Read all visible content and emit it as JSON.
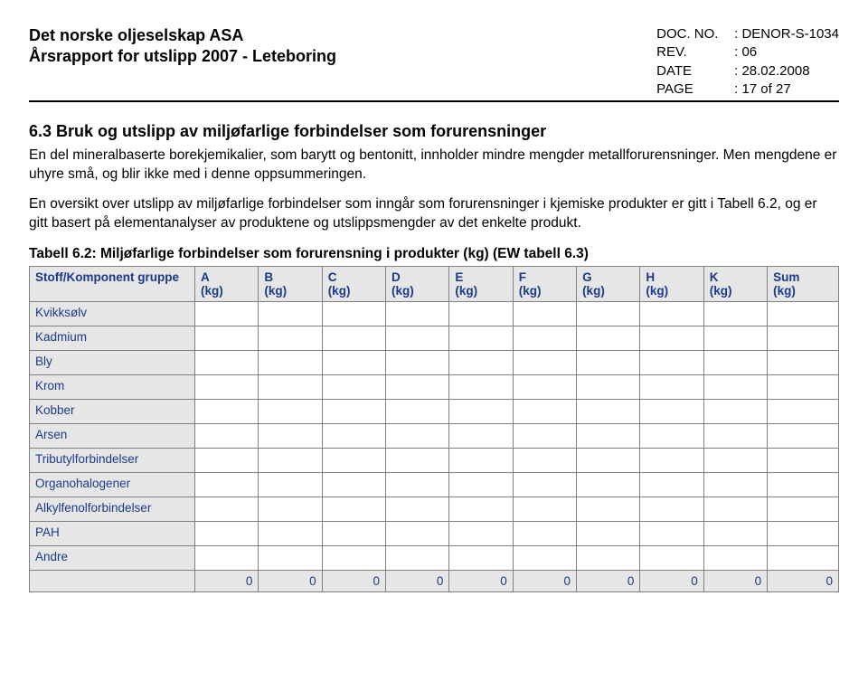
{
  "header": {
    "company": "Det norske oljeselskap ASA",
    "report": "Årsrapport for utslipp 2007 - Leteboring",
    "doc_label": "DOC. NO.",
    "doc_value": ": DENOR-S-1034",
    "rev_label": "REV.",
    "rev_value": ": 06",
    "date_label": "DATE",
    "date_value": ": 28.02.2008",
    "page_label": "PAGE",
    "page_value": ": 17 of 27"
  },
  "section": {
    "heading": "6.3  Bruk og utslipp av miljøfarlige forbindelser som forurensninger",
    "para1": "En del mineralbaserte borekjemikalier, som barytt og bentonitt, innholder mindre mengder metallforurensninger. Men mengdene er uhyre små, og blir ikke med i denne oppsummeringen.",
    "para2": "En oversikt over utslipp av miljøfarlige forbindelser som inngår som forurensninger i kjemiske produkter er gitt i Tabell 6.2, og er gitt basert på elementanalyser av produktene og utslippsmengder av det enkelte produkt."
  },
  "table": {
    "caption": "Tabell 6.2: Miljøfarlige forbindelser som forurensning i produkter (kg) (EW tabell 6.3)",
    "first_col_header": "Stoff/Komponent gruppe",
    "columns": [
      {
        "top": "A",
        "unit": "(kg)"
      },
      {
        "top": "B",
        "unit": "(kg)"
      },
      {
        "top": "C",
        "unit": "(kg)"
      },
      {
        "top": "D",
        "unit": "(kg)"
      },
      {
        "top": "E",
        "unit": "(kg)"
      },
      {
        "top": "F",
        "unit": "(kg)"
      },
      {
        "top": "G",
        "unit": "(kg)"
      },
      {
        "top": "H",
        "unit": "(kg)"
      },
      {
        "top": "K",
        "unit": "(kg)"
      },
      {
        "top": "Sum",
        "unit": "(kg)"
      }
    ],
    "rows": [
      "Kvikksølv",
      "Kadmium",
      "Bly",
      "Krom",
      "Kobber",
      "Arsen",
      "Tributylforbindelser",
      "Organohalogener",
      "Alkylfenolforbindelser",
      "PAH",
      "Andre"
    ],
    "totals": [
      "0",
      "0",
      "0",
      "0",
      "0",
      "0",
      "0",
      "0",
      "0",
      "0"
    ]
  },
  "style": {
    "header_accent": "#1a3a8a",
    "header_bg": "#e6e6e6",
    "border": "#808080",
    "bg": "#ffffff",
    "text": "#000000"
  }
}
